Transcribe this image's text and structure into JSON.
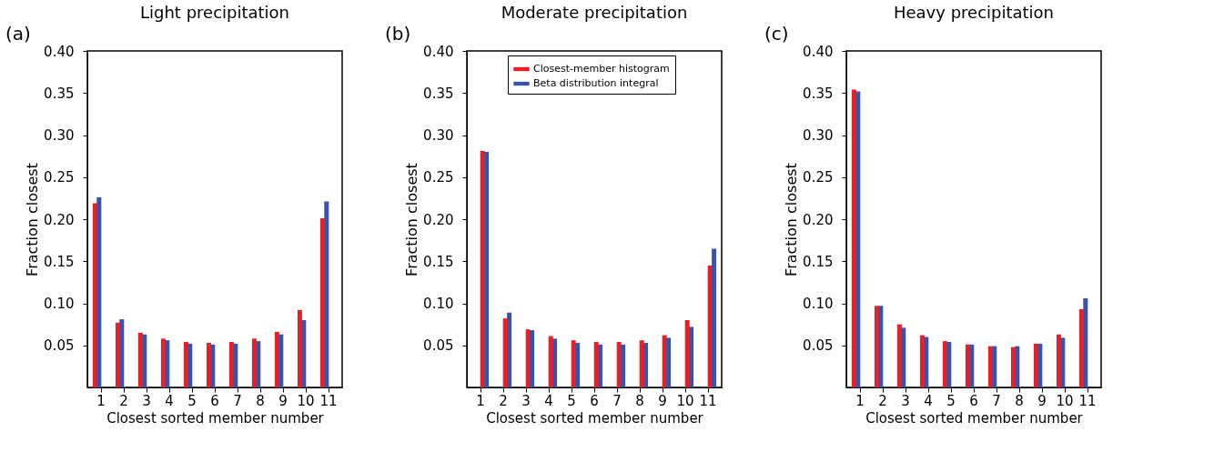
{
  "chart_data": [
    {
      "type": "bar",
      "title": "Light precipitation",
      "xlabel": "Closest sorted member number",
      "ylabel": "Fraction closest",
      "annotations": [
        "(a)"
      ],
      "categories": [
        "1",
        "2",
        "3",
        "4",
        "5",
        "6",
        "7",
        "8",
        "9",
        "10",
        "11"
      ],
      "series": [
        {
          "color": "#ee1c25",
          "values": [
            0.219,
            0.077,
            0.065,
            0.058,
            0.054,
            0.053,
            0.054,
            0.058,
            0.066,
            0.092,
            0.201
          ]
        },
        {
          "color": "#3a53a4",
          "values": [
            0.226,
            0.081,
            0.063,
            0.056,
            0.052,
            0.051,
            0.052,
            0.055,
            0.063,
            0.08,
            0.221
          ]
        }
      ],
      "ylim": [
        0,
        0.4
      ],
      "yticks": [
        {
          "value": 0.05,
          "label": "0.05"
        },
        {
          "value": 0.1,
          "label": "0.10"
        },
        {
          "value": 0.15,
          "label": "0.15"
        },
        {
          "value": 0.2,
          "label": "0.20"
        },
        {
          "value": 0.25,
          "label": "0.25"
        },
        {
          "value": 0.3,
          "label": "0.30"
        },
        {
          "value": 0.35,
          "label": "0.35"
        },
        {
          "value": 0.4,
          "label": "0.40"
        }
      ],
      "grid": false,
      "legend": false
    },
    {
      "type": "bar",
      "title": "Moderate precipitation",
      "xlabel": "Closest sorted member number",
      "ylabel": "Fraction closest",
      "annotations": [
        "(b)"
      ],
      "categories": [
        "1",
        "2",
        "3",
        "4",
        "5",
        "6",
        "7",
        "8",
        "9",
        "10",
        "11"
      ],
      "series": [
        {
          "name": "Closest-member histogram",
          "color": "#ee1c25",
          "values": [
            0.281,
            0.082,
            0.069,
            0.061,
            0.056,
            0.054,
            0.054,
            0.056,
            0.062,
            0.08,
            0.145
          ]
        },
        {
          "name": "Beta distribution integral",
          "color": "#3a53a4",
          "values": [
            0.28,
            0.089,
            0.068,
            0.058,
            0.053,
            0.051,
            0.051,
            0.053,
            0.059,
            0.072,
            0.165
          ]
        }
      ],
      "ylim": [
        0,
        0.4
      ],
      "yticks": [
        {
          "value": 0.05,
          "label": "0.05"
        },
        {
          "value": 0.1,
          "label": "0.10"
        },
        {
          "value": 0.15,
          "label": "0.15"
        },
        {
          "value": 0.2,
          "label": "0.20"
        },
        {
          "value": 0.25,
          "label": "0.25"
        },
        {
          "value": 0.3,
          "label": "0.30"
        },
        {
          "value": 0.35,
          "label": "0.35"
        },
        {
          "value": 0.4,
          "label": "0.40"
        }
      ],
      "grid": false,
      "legend": "top"
    },
    {
      "type": "bar",
      "title": "Heavy precipitation",
      "xlabel": "Closest sorted member number",
      "ylabel": "Fraction closest",
      "annotations": [
        "(c)"
      ],
      "categories": [
        "1",
        "2",
        "3",
        "4",
        "5",
        "6",
        "7",
        "8",
        "9",
        "10",
        "11"
      ],
      "series": [
        {
          "color": "#ee1c25",
          "values": [
            0.354,
            0.097,
            0.075,
            0.062,
            0.055,
            0.051,
            0.049,
            0.048,
            0.052,
            0.063,
            0.093
          ]
        },
        {
          "color": "#3a53a4",
          "values": [
            0.352,
            0.097,
            0.071,
            0.06,
            0.054,
            0.051,
            0.049,
            0.049,
            0.052,
            0.059,
            0.106
          ]
        }
      ],
      "ylim": [
        0,
        0.4
      ],
      "yticks": [
        {
          "value": 0.05,
          "label": "0.05"
        },
        {
          "value": 0.1,
          "label": "0.10"
        },
        {
          "value": 0.15,
          "label": "0.15"
        },
        {
          "value": 0.2,
          "label": "0.20"
        },
        {
          "value": 0.25,
          "label": "0.25"
        },
        {
          "value": 0.3,
          "label": "0.30"
        },
        {
          "value": 0.35,
          "label": "0.35"
        },
        {
          "value": 0.4,
          "label": "0.40"
        }
      ],
      "grid": false,
      "legend": false
    }
  ]
}
